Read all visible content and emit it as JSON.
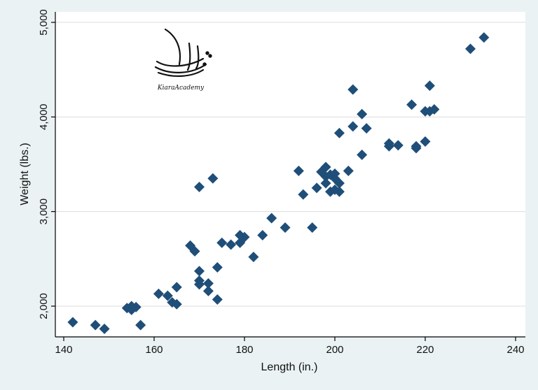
{
  "chart_data": {
    "type": "scatter",
    "xlabel": "Length (in.)",
    "ylabel": "Weight (lbs.)",
    "xlim": [
      140,
      240
    ],
    "ylim": [
      1700,
      5000
    ],
    "x_ticks": [
      140,
      160,
      180,
      200,
      220,
      240
    ],
    "y_ticks": [
      2000,
      3000,
      4000,
      5000
    ],
    "x_tick_labels": [
      "140",
      "160",
      "180",
      "200",
      "220",
      "240"
    ],
    "y_tick_labels": [
      "2,000",
      "3,000",
      "4,000",
      "5,000"
    ],
    "grid": "horizontal",
    "marker": "diamond",
    "marker_color": "#1f4e79",
    "series": [
      {
        "points": [
          [
            142,
            1830
          ],
          [
            147,
            1800
          ],
          [
            149,
            1760
          ],
          [
            154,
            1980
          ],
          [
            155,
            2000
          ],
          [
            155,
            1960
          ],
          [
            156,
            1990
          ],
          [
            157,
            1800
          ],
          [
            161,
            2130
          ],
          [
            163,
            2110
          ],
          [
            164,
            2040
          ],
          [
            165,
            2020
          ],
          [
            165,
            2200
          ],
          [
            168,
            2640
          ],
          [
            169,
            2580
          ],
          [
            170,
            2370
          ],
          [
            170,
            2270
          ],
          [
            170,
            2230
          ],
          [
            170,
            3260
          ],
          [
            172,
            2240
          ],
          [
            172,
            2160
          ],
          [
            173,
            3350
          ],
          [
            174,
            2410
          ],
          [
            174,
            2070
          ],
          [
            175,
            2670
          ],
          [
            177,
            2650
          ],
          [
            179,
            2750
          ],
          [
            179,
            2670
          ],
          [
            180,
            2730
          ],
          [
            182,
            2520
          ],
          [
            184,
            2750
          ],
          [
            186,
            2930
          ],
          [
            189,
            2830
          ],
          [
            192,
            3430
          ],
          [
            193,
            3180
          ],
          [
            195,
            2830
          ],
          [
            196,
            3250
          ],
          [
            197,
            3420
          ],
          [
            198,
            3470
          ],
          [
            198,
            3370
          ],
          [
            198,
            3300
          ],
          [
            199,
            3210
          ],
          [
            199,
            3390
          ],
          [
            200,
            3400
          ],
          [
            200,
            3230
          ],
          [
            200,
            3350
          ],
          [
            201,
            3300
          ],
          [
            201,
            3210
          ],
          [
            201,
            3830
          ],
          [
            203,
            3430
          ],
          [
            204,
            3900
          ],
          [
            204,
            4290
          ],
          [
            206,
            4030
          ],
          [
            206,
            3600
          ],
          [
            207,
            3880
          ],
          [
            212,
            3690
          ],
          [
            212,
            3720
          ],
          [
            214,
            3700
          ],
          [
            217,
            4130
          ],
          [
            218,
            3670
          ],
          [
            218,
            3690
          ],
          [
            220,
            3740
          ],
          [
            220,
            4060
          ],
          [
            221,
            4060
          ],
          [
            221,
            4330
          ],
          [
            222,
            4080
          ],
          [
            230,
            4720
          ],
          [
            233,
            4840
          ]
        ]
      }
    ]
  },
  "logo": {
    "text": "KiaraAcademy",
    "color": "#111111"
  }
}
